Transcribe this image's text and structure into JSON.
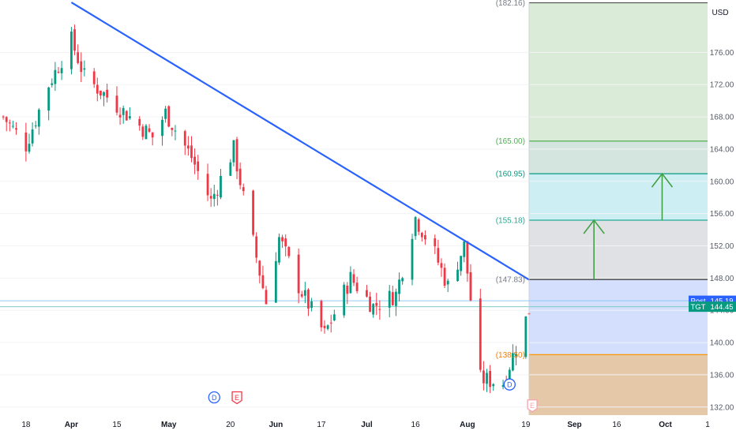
{
  "app": {
    "currency": "USD"
  },
  "chart_data": {
    "type": "candlestick",
    "ticker": "TGT",
    "currency": "USD",
    "y_axis": {
      "ticks": [
        132,
        136,
        140,
        144,
        148,
        152,
        156,
        160,
        164,
        168,
        172,
        176
      ],
      "tick_labels": [
        "132.00",
        "136.00",
        "140.00",
        "144.00",
        "148.00",
        "152.00",
        "156.00",
        "160.00",
        "164.00",
        "168.00",
        "172.00",
        "176.00"
      ],
      "range": [
        131.0,
        182.5
      ]
    },
    "x_axis": {
      "labels": [
        "18",
        "Apr",
        "15",
        "May",
        "20",
        "Jun",
        "17",
        "Jul",
        "16",
        "Aug",
        "19",
        "Sep",
        "16",
        "Oct",
        "1"
      ],
      "label_dates": [
        "2024-03-18",
        "2024-04-01",
        "2024-04-15",
        "2024-05-01",
        "2024-05-20",
        "2024-06-03",
        "2024-06-17",
        "2024-07-01",
        "2024-07-16",
        "2024-08-01",
        "2024-08-19",
        "2024-09-03",
        "2024-09-16",
        "2024-10-01",
        "2024-10-14"
      ],
      "range": [
        "2024-03-10",
        "2024-10-14"
      ]
    },
    "trendline": {
      "start": {
        "date": "2024-04-01",
        "price": 182.2
      },
      "end": {
        "date": "2024-08-20",
        "price": 147.8
      },
      "color": "#2962ff"
    },
    "price_levels": [
      {
        "label": "(182.16)",
        "value": 182.16,
        "color": "#787b86",
        "line_color": "#555555"
      },
      {
        "label": "(165.00)",
        "value": 165.0,
        "color": "#4caf50",
        "line_color": "#4caf50"
      },
      {
        "label": "(160.95)",
        "value": 160.95,
        "color": "#089981",
        "line_color": "#089981"
      },
      {
        "label": "(155.18)",
        "value": 155.18,
        "color": "#22ab94",
        "line_color": "#22ab94"
      },
      {
        "label": "(147.83)",
        "value": 147.83,
        "color": "#787b86",
        "line_color": "#333333"
      },
      {
        "label": "(138.50)",
        "value": 138.5,
        "color": "#f57c00",
        "line_color": "#ff9800"
      }
    ],
    "zones": [
      {
        "from": 165.0,
        "to": 182.16,
        "color": "#daecd7"
      },
      {
        "from": 160.95,
        "to": 165.0,
        "color": "#d3e5de"
      },
      {
        "from": 155.18,
        "to": 160.95,
        "color": "#cdeff4"
      },
      {
        "from": 147.83,
        "to": 155.18,
        "color": "#e0e1e4"
      },
      {
        "from": 138.5,
        "to": 147.83,
        "color": "#d3dffc"
      },
      {
        "from": 131.0,
        "to": 138.5,
        "color": "#e4c8a8"
      }
    ],
    "arrows": [
      {
        "date": "2024-09-09",
        "from": 147.83,
        "to": 155.18,
        "color": "#43a047"
      },
      {
        "date": "2024-09-30",
        "from": 155.18,
        "to": 160.95,
        "color": "#43a047"
      }
    ],
    "badges": [
      {
        "label": "Post",
        "value": "145.19",
        "price": 145.19,
        "color": "#2962ff"
      },
      {
        "label": "TGT",
        "value": "144.45",
        "price": 144.45,
        "color": "#089981"
      }
    ],
    "reference_lines": [
      {
        "price": 145.19,
        "color": "#90caf9"
      },
      {
        "price": 144.45,
        "color": "#80cbc4"
      }
    ],
    "events": [
      {
        "label": "D",
        "date": "2024-05-15",
        "price": 133.2,
        "kind": "dividend",
        "color": "#2962ff"
      },
      {
        "label": "E",
        "date": "2024-05-22",
        "price": 133.2,
        "kind": "earnings",
        "color": "#f23645"
      },
      {
        "label": "D",
        "date": "2024-08-14",
        "price": 134.8,
        "kind": "dividend",
        "color": "#2962ff"
      },
      {
        "label": "E",
        "date": "2024-08-21",
        "price": 132.2,
        "kind": "earnings-upcoming",
        "color": "#f7a3ab"
      }
    ],
    "colors": {
      "up": "#089981",
      "down": "#f23645"
    },
    "waypoints": [
      {
        "date": "2024-03-11",
        "price": 168.0
      },
      {
        "date": "2024-03-18",
        "price": 164.5
      },
      {
        "date": "2024-03-25",
        "price": 172.0
      },
      {
        "date": "2024-04-01",
        "price": 177.5
      },
      {
        "date": "2024-04-05",
        "price": 173.0
      },
      {
        "date": "2024-04-12",
        "price": 170.5
      },
      {
        "date": "2024-04-19",
        "price": 168.0
      },
      {
        "date": "2024-04-26",
        "price": 165.5
      },
      {
        "date": "2024-04-30",
        "price": 168.5
      },
      {
        "date": "2024-05-08",
        "price": 163.0
      },
      {
        "date": "2024-05-14",
        "price": 157.5
      },
      {
        "date": "2024-05-21",
        "price": 164.0
      },
      {
        "date": "2024-05-24",
        "price": 158.0
      },
      {
        "date": "2024-05-31",
        "price": 145.0
      },
      {
        "date": "2024-06-04",
        "price": 153.0
      },
      {
        "date": "2024-06-10",
        "price": 147.0
      },
      {
        "date": "2024-06-18",
        "price": 141.0
      },
      {
        "date": "2024-06-26",
        "price": 148.0
      },
      {
        "date": "2024-07-03",
        "price": 144.5
      },
      {
        "date": "2024-07-10",
        "price": 146.0
      },
      {
        "date": "2024-07-16",
        "price": 155.5
      },
      {
        "date": "2024-07-22",
        "price": 151.0
      },
      {
        "date": "2024-07-26",
        "price": 147.0
      },
      {
        "date": "2024-07-31",
        "price": 152.0
      },
      {
        "date": "2024-08-05",
        "price": 135.5
      },
      {
        "date": "2024-08-12",
        "price": 135.0
      },
      {
        "date": "2024-08-20",
        "price": 144.0
      }
    ]
  }
}
